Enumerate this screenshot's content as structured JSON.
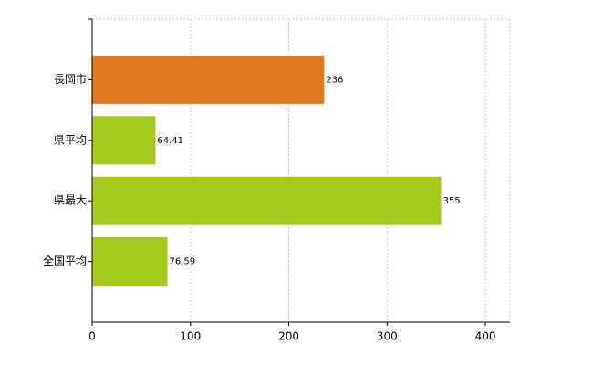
{
  "chart_data": {
    "type": "hbar",
    "categories": [
      "長岡市",
      "県平均",
      "県最大",
      "全国平均"
    ],
    "values": [
      236,
      64.41,
      355,
      76.59
    ],
    "colors": [
      "#e2791f",
      "#a5c91d",
      "#a5c91d",
      "#a5c91d"
    ],
    "xlim": [
      0,
      425
    ],
    "xticks": [
      0,
      100,
      200,
      300,
      400
    ],
    "grid": true
  }
}
